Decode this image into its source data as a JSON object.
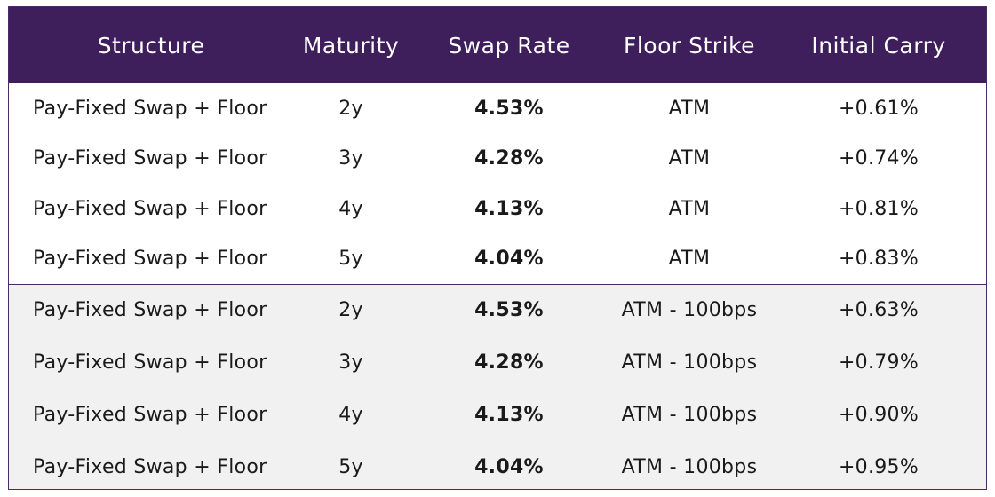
{
  "columns": [
    "Structure",
    "Maturity",
    "Swap Rate",
    "Floor Strike",
    "Initial Carry"
  ],
  "rows": [
    {
      "structure": "Pay-Fixed Swap + Floor",
      "maturity": "2y",
      "swap_rate": "4.53%",
      "floor_strike": "ATM",
      "initial_carry": "+0.61%"
    },
    {
      "structure": "Pay-Fixed Swap + Floor",
      "maturity": "3y",
      "swap_rate": "4.28%",
      "floor_strike": "ATM",
      "initial_carry": "+0.74%"
    },
    {
      "structure": "Pay-Fixed Swap + Floor",
      "maturity": "4y",
      "swap_rate": "4.13%",
      "floor_strike": "ATM",
      "initial_carry": "+0.81%"
    },
    {
      "structure": "Pay-Fixed Swap + Floor",
      "maturity": "5y",
      "swap_rate": "4.04%",
      "floor_strike": "ATM",
      "initial_carry": "+0.83%"
    },
    {
      "structure": "Pay-Fixed Swap + Floor",
      "maturity": "2y",
      "swap_rate": "4.53%",
      "floor_strike": "ATM - 100bps",
      "initial_carry": "+0.63%"
    },
    {
      "structure": "Pay-Fixed Swap + Floor",
      "maturity": "3y",
      "swap_rate": "4.28%",
      "floor_strike": "ATM - 100bps",
      "initial_carry": "+0.79%"
    },
    {
      "structure": "Pay-Fixed Swap + Floor",
      "maturity": "4y",
      "swap_rate": "4.13%",
      "floor_strike": "ATM - 100bps",
      "initial_carry": "+0.90%"
    },
    {
      "structure": "Pay-Fixed Swap + Floor",
      "maturity": "5y",
      "swap_rate": "4.04%",
      "floor_strike": "ATM - 100bps",
      "initial_carry": "+0.95%"
    }
  ],
  "colors": {
    "header_bg": "#3e1f5c",
    "header_text": "#ffffff",
    "shaded_row_bg": "#f1f1f1",
    "border": "#4a2a68"
  }
}
